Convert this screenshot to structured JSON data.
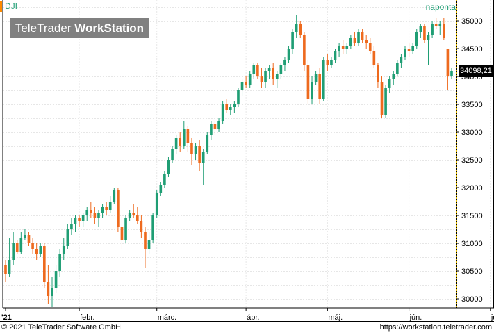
{
  "header": {
    "symbol": "DJI",
    "period": "naponta",
    "logo_light": "TeleTrader ",
    "logo_bold": "WorkStation"
  },
  "price_tag": "34098,21",
  "footer": {
    "copyright": "© 2021 TeleTrader Software GmbH",
    "url": "https://workstation.teletrader.com"
  },
  "colors": {
    "up": "#1f9e74",
    "down": "#ee6a1e",
    "grid": "#e6e6e6",
    "axis": "#000000"
  },
  "chart_data": {
    "type": "candlestick",
    "title": "DJI",
    "y_axis_side": "right",
    "ylim": [
      29800,
      35200
    ],
    "y_ticks": [
      30000,
      30500,
      31000,
      31500,
      32000,
      32500,
      33000,
      33500,
      34000,
      34500,
      35000
    ],
    "y_tick_labels": [
      "30000",
      "30500",
      "31000",
      "31500",
      "32000",
      "32500",
      "33000",
      "33500",
      "34000",
      "34500",
      "35000"
    ],
    "x_labels": [
      {
        "label": "'21",
        "day": 0
      },
      {
        "label": "febr.",
        "day": 19
      },
      {
        "label": "márc.",
        "day": 39
      },
      {
        "label": "ápr.",
        "day": 62
      },
      {
        "label": "máj.",
        "day": 83
      },
      {
        "label": "jún.",
        "day": 104
      },
      {
        "label": "júl.",
        "day": 125
      }
    ],
    "last_value": 34098.21,
    "candles": [
      [
        30600,
        30700,
        30300,
        30450
      ],
      [
        30450,
        31100,
        30400,
        30700
      ],
      [
        30700,
        31200,
        30600,
        31000
      ],
      [
        31000,
        31050,
        30800,
        30850
      ],
      [
        30850,
        31200,
        30800,
        31100
      ],
      [
        31100,
        31250,
        31050,
        31150
      ],
      [
        31150,
        31200,
        30950,
        31000
      ],
      [
        31000,
        31100,
        30800,
        30900
      ],
      [
        30900,
        31000,
        30700,
        30800
      ],
      [
        30800,
        31000,
        30750,
        30950
      ],
      [
        30950,
        31000,
        30200,
        30300
      ],
      [
        30300,
        30600,
        29900,
        30050
      ],
      [
        30050,
        30400,
        29850,
        30200
      ],
      [
        30200,
        30600,
        30100,
        30500
      ],
      [
        30500,
        30900,
        30400,
        30800
      ],
      [
        30800,
        31100,
        30700,
        30950
      ],
      [
        30950,
        31350,
        30900,
        31250
      ],
      [
        31250,
        31450,
        31150,
        31350
      ],
      [
        31350,
        31500,
        31200,
        31450
      ],
      [
        31450,
        31500,
        31300,
        31400
      ],
      [
        31400,
        31550,
        31300,
        31500
      ],
      [
        31500,
        31650,
        31400,
        31600
      ],
      [
        31600,
        31750,
        31450,
        31550
      ],
      [
        31550,
        31650,
        31350,
        31450
      ],
      [
        31450,
        31600,
        31300,
        31550
      ],
      [
        31550,
        31700,
        31450,
        31650
      ],
      [
        31650,
        31750,
        31500,
        31600
      ],
      [
        31600,
        31850,
        31550,
        31750
      ],
      [
        31750,
        32000,
        31700,
        31950
      ],
      [
        31950,
        32000,
        31200,
        31300
      ],
      [
        31300,
        31500,
        30900,
        31050
      ],
      [
        31050,
        31500,
        31000,
        31450
      ],
      [
        31450,
        31600,
        31400,
        31550
      ],
      [
        31550,
        31700,
        31450,
        31500
      ],
      [
        31500,
        31650,
        31350,
        31400
      ],
      [
        31400,
        31500,
        31100,
        31200
      ],
      [
        31200,
        31300,
        30550,
        30900
      ],
      [
        30900,
        31200,
        30800,
        31050
      ],
      [
        31050,
        31550,
        31000,
        31500
      ],
      [
        31500,
        31950,
        31450,
        31900
      ],
      [
        31900,
        32100,
        31850,
        32050
      ],
      [
        32050,
        32300,
        32000,
        32250
      ],
      [
        32250,
        32550,
        32200,
        32500
      ],
      [
        32500,
        32750,
        32450,
        32700
      ],
      [
        32700,
        32950,
        32600,
        32900
      ],
      [
        32900,
        33000,
        32650,
        32750
      ],
      [
        32750,
        33200,
        32700,
        33050
      ],
      [
        33050,
        33100,
        32650,
        32800
      ],
      [
        32800,
        32900,
        32400,
        32600
      ],
      [
        32600,
        32800,
        32500,
        32750
      ],
      [
        32750,
        32850,
        32300,
        32450
      ],
      [
        32450,
        32700,
        32050,
        32650
      ],
      [
        32650,
        33000,
        32600,
        32950
      ],
      [
        32950,
        33200,
        32850,
        33150
      ],
      [
        33150,
        33200,
        32950,
        33050
      ],
      [
        33050,
        33250,
        33000,
        33200
      ],
      [
        33200,
        33550,
        33150,
        33500
      ],
      [
        33500,
        33600,
        33350,
        33400
      ],
      [
        33400,
        33500,
        33300,
        33450
      ],
      [
        33450,
        33550,
        33350,
        33500
      ],
      [
        33500,
        33800,
        33450,
        33750
      ],
      [
        33750,
        33950,
        33650,
        33900
      ],
      [
        33900,
        34000,
        33800,
        33850
      ],
      [
        33850,
        34100,
        33800,
        34050
      ],
      [
        34050,
        34250,
        33950,
        34200
      ],
      [
        34200,
        34250,
        33950,
        34000
      ],
      [
        34000,
        34150,
        33800,
        33900
      ],
      [
        33900,
        34150,
        33800,
        34100
      ],
      [
        34100,
        34200,
        33950,
        34150
      ],
      [
        34150,
        34250,
        33850,
        33950
      ],
      [
        33950,
        34100,
        33800,
        34050
      ],
      [
        34050,
        34250,
        33950,
        34200
      ],
      [
        34200,
        34350,
        34100,
        34300
      ],
      [
        34300,
        34550,
        34250,
        34500
      ],
      [
        34500,
        34850,
        34400,
        34800
      ],
      [
        34800,
        35100,
        34700,
        34950
      ],
      [
        34950,
        35000,
        34700,
        34750
      ],
      [
        34750,
        34800,
        34100,
        34200
      ],
      [
        34200,
        34300,
        33500,
        33600
      ],
      [
        33600,
        34000,
        33500,
        33900
      ],
      [
        33900,
        34100,
        33850,
        34050
      ],
      [
        34050,
        34150,
        33500,
        33600
      ],
      [
        33600,
        34350,
        33550,
        34300
      ],
      [
        34300,
        34400,
        34100,
        34200
      ],
      [
        34200,
        34350,
        34150,
        34300
      ],
      [
        34300,
        34500,
        34250,
        34450
      ],
      [
        34450,
        34600,
        34350,
        34550
      ],
      [
        34550,
        34650,
        34400,
        34500
      ],
      [
        34500,
        34600,
        34400,
        34550
      ],
      [
        34550,
        34750,
        34500,
        34700
      ],
      [
        34700,
        34800,
        34550,
        34600
      ],
      [
        34600,
        34850,
        34550,
        34800
      ],
      [
        34800,
        34850,
        34600,
        34650
      ],
      [
        34650,
        34750,
        34500,
        34600
      ],
      [
        34600,
        34700,
        34400,
        34450
      ],
      [
        34450,
        34550,
        34150,
        34200
      ],
      [
        34200,
        34250,
        33800,
        33900
      ],
      [
        33900,
        34000,
        33250,
        33300
      ],
      [
        33300,
        33850,
        33250,
        33800
      ],
      [
        33800,
        34000,
        33700,
        33950
      ],
      [
        33950,
        34100,
        33850,
        34050
      ],
      [
        34050,
        34300,
        34000,
        34250
      ],
      [
        34250,
        34400,
        34150,
        34350
      ],
      [
        34350,
        34550,
        34300,
        34500
      ],
      [
        34500,
        34600,
        34350,
        34450
      ],
      [
        34450,
        34600,
        34400,
        34550
      ],
      [
        34550,
        34850,
        34500,
        34800
      ],
      [
        34800,
        34950,
        34700,
        34900
      ],
      [
        34900,
        34950,
        34600,
        34650
      ],
      [
        34650,
        34800,
        34200,
        34750
      ],
      [
        34750,
        35000,
        34700,
        34950
      ],
      [
        34950,
        35050,
        34850,
        34900
      ],
      [
        34900,
        35000,
        34750,
        34950
      ],
      [
        34950,
        35050,
        34650,
        34700
      ],
      [
        34500,
        34500,
        33750,
        34000
      ],
      [
        34000,
        34150,
        33950,
        34100
      ]
    ]
  }
}
